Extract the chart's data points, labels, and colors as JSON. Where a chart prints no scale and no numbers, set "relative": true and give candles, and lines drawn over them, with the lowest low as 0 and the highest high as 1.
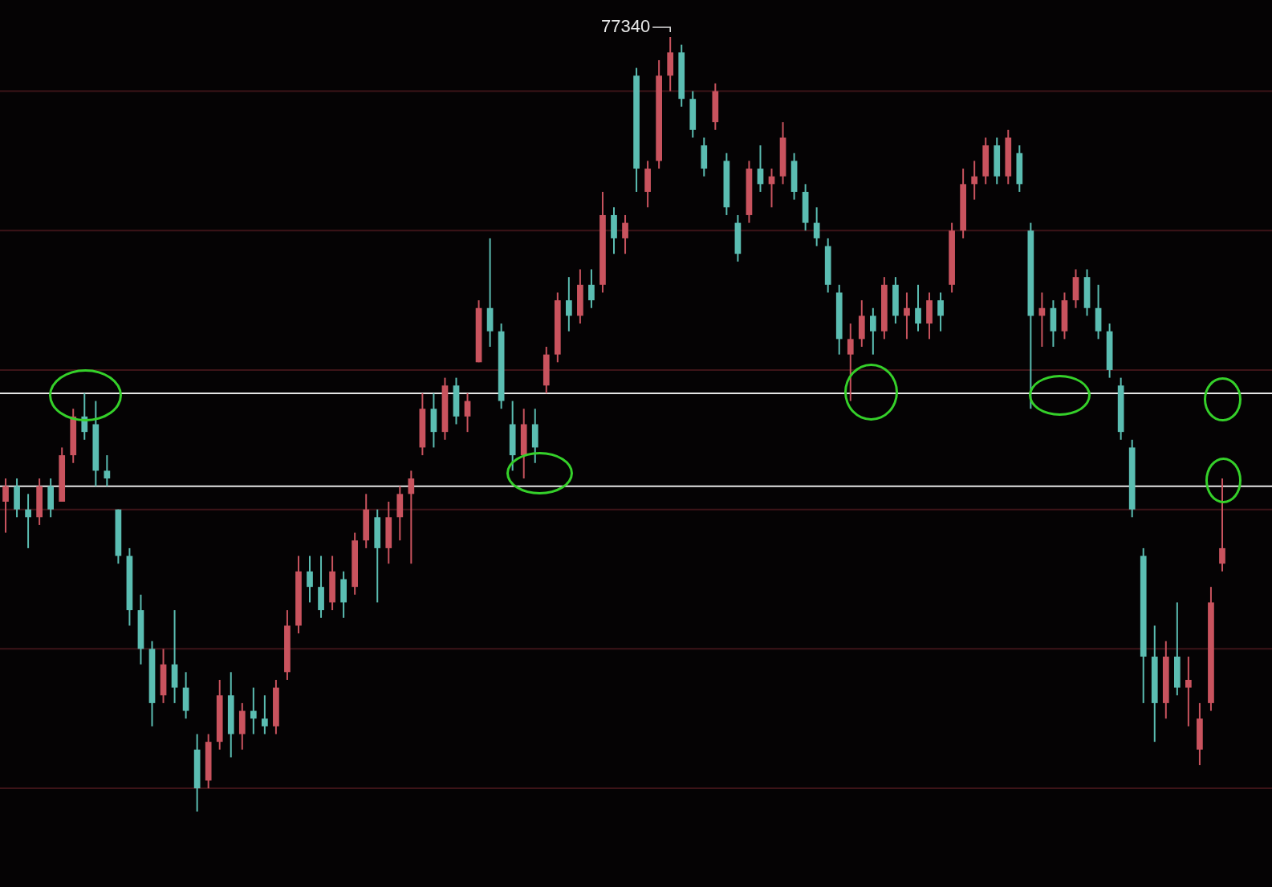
{
  "chart_data": {
    "type": "candlestick",
    "relative": true,
    "categories": [
      null,
      null,
      null,
      null,
      null,
      null,
      null,
      null,
      null,
      null,
      null,
      null,
      null,
      null,
      null,
      null,
      null,
      null,
      null,
      null,
      null,
      null,
      null,
      null,
      null,
      null,
      null,
      null,
      null,
      null,
      null,
      null,
      null,
      null,
      null,
      null,
      null,
      null,
      null,
      null,
      null,
      null,
      null,
      null,
      null,
      null,
      null,
      null,
      null,
      null,
      null,
      null,
      null,
      null,
      null,
      null,
      null,
      null,
      null,
      null,
      null,
      null,
      null,
      null,
      null,
      null,
      null,
      null,
      null,
      null,
      null,
      null,
      null,
      null,
      null,
      null,
      null,
      null,
      null,
      null,
      null,
      null,
      null,
      null,
      null,
      null,
      null,
      null,
      null,
      null,
      null,
      null,
      null,
      null,
      null,
      null,
      null,
      null,
      null,
      null,
      null,
      null,
      null,
      null,
      null,
      null,
      null,
      null,
      null
    ],
    "ohlc": [
      [
        0.4,
        0.43,
        0.36,
        0.42
      ],
      [
        0.42,
        0.43,
        0.38,
        0.39
      ],
      [
        0.39,
        0.41,
        0.34,
        0.38
      ],
      [
        0.38,
        0.43,
        0.37,
        0.42
      ],
      [
        0.42,
        0.43,
        0.38,
        0.39
      ],
      [
        0.4,
        0.47,
        0.4,
        0.46
      ],
      [
        0.46,
        0.52,
        0.45,
        0.51
      ],
      [
        0.51,
        0.54,
        0.48,
        0.49
      ],
      [
        0.5,
        0.53,
        0.42,
        0.44
      ],
      [
        0.44,
        0.46,
        0.42,
        0.43
      ],
      [
        0.39,
        0.39,
        0.32,
        0.33
      ],
      [
        0.33,
        0.34,
        0.24,
        0.26
      ],
      [
        0.26,
        0.28,
        0.19,
        0.21
      ],
      [
        0.21,
        0.22,
        0.11,
        0.14
      ],
      [
        0.15,
        0.21,
        0.14,
        0.19
      ],
      [
        0.19,
        0.26,
        0.14,
        0.16
      ],
      [
        0.16,
        0.18,
        0.12,
        0.13
      ],
      [
        0.08,
        0.1,
        0.0,
        0.03
      ],
      [
        0.04,
        0.1,
        0.03,
        0.09
      ],
      [
        0.09,
        0.17,
        0.08,
        0.15
      ],
      [
        0.15,
        0.18,
        0.07,
        0.1
      ],
      [
        0.1,
        0.14,
        0.08,
        0.13
      ],
      [
        0.13,
        0.16,
        0.1,
        0.12
      ],
      [
        0.12,
        0.15,
        0.1,
        0.11
      ],
      [
        0.11,
        0.17,
        0.1,
        0.16
      ],
      [
        0.18,
        0.26,
        0.17,
        0.24
      ],
      [
        0.24,
        0.33,
        0.23,
        0.31
      ],
      [
        0.31,
        0.33,
        0.27,
        0.29
      ],
      [
        0.29,
        0.33,
        0.25,
        0.26
      ],
      [
        0.27,
        0.33,
        0.26,
        0.31
      ],
      [
        0.3,
        0.31,
        0.25,
        0.27
      ],
      [
        0.29,
        0.36,
        0.28,
        0.35
      ],
      [
        0.35,
        0.41,
        0.34,
        0.39
      ],
      [
        0.38,
        0.39,
        0.27,
        0.34
      ],
      [
        0.34,
        0.4,
        0.32,
        0.38
      ],
      [
        0.38,
        0.42,
        0.35,
        0.41
      ],
      [
        0.41,
        0.44,
        0.32,
        0.43
      ],
      [
        0.47,
        0.54,
        0.46,
        0.52
      ],
      [
        0.52,
        0.54,
        0.47,
        0.49
      ],
      [
        0.49,
        0.56,
        0.48,
        0.55
      ],
      [
        0.55,
        0.56,
        0.5,
        0.51
      ],
      [
        0.51,
        0.54,
        0.49,
        0.53
      ],
      [
        0.58,
        0.66,
        0.58,
        0.65
      ],
      [
        0.65,
        0.74,
        0.6,
        0.62
      ],
      [
        0.62,
        0.63,
        0.52,
        0.53
      ],
      [
        0.5,
        0.53,
        0.44,
        0.46
      ],
      [
        0.46,
        0.52,
        0.43,
        0.5
      ],
      [
        0.5,
        0.52,
        0.45,
        0.47
      ],
      [
        0.55,
        0.6,
        0.54,
        0.59
      ],
      [
        0.59,
        0.67,
        0.58,
        0.66
      ],
      [
        0.66,
        0.69,
        0.62,
        0.64
      ],
      [
        0.64,
        0.7,
        0.63,
        0.68
      ],
      [
        0.68,
        0.7,
        0.65,
        0.66
      ],
      [
        0.68,
        0.8,
        0.67,
        0.77
      ],
      [
        0.77,
        0.78,
        0.72,
        0.74
      ],
      [
        0.74,
        0.77,
        0.72,
        0.76
      ],
      [
        0.95,
        0.96,
        0.8,
        0.83
      ],
      [
        0.8,
        0.84,
        0.78,
        0.83
      ],
      [
        0.84,
        0.97,
        0.83,
        0.95
      ],
      [
        0.95,
        1.0,
        0.93,
        0.98
      ],
      [
        0.98,
        0.99,
        0.91,
        0.92
      ],
      [
        0.92,
        0.93,
        0.87,
        0.88
      ],
      [
        0.86,
        0.87,
        0.82,
        0.83
      ],
      [
        0.89,
        0.94,
        0.88,
        0.93
      ],
      [
        0.84,
        0.85,
        0.77,
        0.78
      ],
      [
        0.76,
        0.77,
        0.71,
        0.72
      ],
      [
        0.77,
        0.84,
        0.76,
        0.83
      ],
      [
        0.83,
        0.86,
        0.8,
        0.81
      ],
      [
        0.81,
        0.83,
        0.78,
        0.82
      ],
      [
        0.82,
        0.89,
        0.81,
        0.87
      ],
      [
        0.84,
        0.85,
        0.79,
        0.8
      ],
      [
        0.8,
        0.81,
        0.75,
        0.76
      ],
      [
        0.76,
        0.78,
        0.73,
        0.74
      ],
      [
        0.73,
        0.74,
        0.67,
        0.68
      ],
      [
        0.67,
        0.68,
        0.59,
        0.61
      ],
      [
        0.59,
        0.63,
        0.53,
        0.61
      ],
      [
        0.61,
        0.66,
        0.6,
        0.64
      ],
      [
        0.64,
        0.65,
        0.59,
        0.62
      ],
      [
        0.62,
        0.69,
        0.61,
        0.68
      ],
      [
        0.68,
        0.69,
        0.63,
        0.64
      ],
      [
        0.64,
        0.67,
        0.61,
        0.65
      ],
      [
        0.65,
        0.68,
        0.62,
        0.63
      ],
      [
        0.63,
        0.67,
        0.61,
        0.66
      ],
      [
        0.66,
        0.67,
        0.62,
        0.64
      ],
      [
        0.68,
        0.76,
        0.67,
        0.75
      ],
      [
        0.75,
        0.83,
        0.74,
        0.81
      ],
      [
        0.81,
        0.84,
        0.79,
        0.82
      ],
      [
        0.82,
        0.87,
        0.81,
        0.86
      ],
      [
        0.86,
        0.87,
        0.81,
        0.82
      ],
      [
        0.82,
        0.88,
        0.81,
        0.87
      ],
      [
        0.85,
        0.86,
        0.8,
        0.81
      ],
      [
        0.75,
        0.76,
        0.52,
        0.64
      ],
      [
        0.64,
        0.67,
        0.6,
        0.65
      ],
      [
        0.65,
        0.66,
        0.6,
        0.62
      ],
      [
        0.62,
        0.67,
        0.61,
        0.66
      ],
      [
        0.66,
        0.7,
        0.65,
        0.69
      ],
      [
        0.69,
        0.7,
        0.64,
        0.65
      ],
      [
        0.65,
        0.68,
        0.61,
        0.62
      ],
      [
        0.62,
        0.63,
        0.56,
        0.57
      ],
      [
        0.55,
        0.56,
        0.48,
        0.49
      ],
      [
        0.47,
        0.48,
        0.38,
        0.39
      ],
      [
        0.33,
        0.34,
        0.14,
        0.2
      ],
      [
        0.2,
        0.24,
        0.09,
        0.14
      ],
      [
        0.14,
        0.22,
        0.12,
        0.2
      ],
      [
        0.2,
        0.27,
        0.15,
        0.16
      ],
      [
        0.16,
        0.2,
        0.11,
        0.17
      ],
      [
        0.08,
        0.14,
        0.06,
        0.12
      ],
      [
        0.14,
        0.29,
        0.13,
        0.27
      ],
      [
        0.32,
        0.43,
        0.31,
        0.34
      ]
    ],
    "colors": [
      "#c9535e",
      "#5bbdb2",
      "#5bbdb2",
      "#c9535e",
      "#5bbdb2",
      "#c9535e",
      "#c9535e",
      "#5bbdb2",
      "#5bbdb2",
      "#5bbdb2",
      "#5bbdb2",
      "#5bbdb2",
      "#5bbdb2",
      "#5bbdb2",
      "#c9535e",
      "#5bbdb2",
      "#5bbdb2",
      "#5bbdb2",
      "#c9535e",
      "#c9535e",
      "#5bbdb2",
      "#c9535e",
      "#5bbdb2",
      "#5bbdb2",
      "#c9535e",
      "#c9535e",
      "#c9535e",
      "#5bbdb2",
      "#5bbdb2",
      "#c9535e",
      "#5bbdb2",
      "#c9535e",
      "#c9535e",
      "#5bbdb2",
      "#c9535e",
      "#c9535e",
      "#c9535e",
      "#c9535e",
      "#5bbdb2",
      "#c9535e",
      "#5bbdb2",
      "#c9535e",
      "#c9535e",
      "#5bbdb2",
      "#5bbdb2",
      "#5bbdb2",
      "#c9535e",
      "#5bbdb2",
      "#c9535e",
      "#c9535e",
      "#5bbdb2",
      "#c9535e",
      "#5bbdb2",
      "#c9535e",
      "#5bbdb2",
      "#c9535e",
      "#5bbdb2",
      "#c9535e",
      "#c9535e",
      "#c9535e",
      "#5bbdb2",
      "#5bbdb2",
      "#5bbdb2",
      "#c9535e",
      "#5bbdb2",
      "#5bbdb2",
      "#c9535e",
      "#5bbdb2",
      "#c9535e",
      "#c9535e",
      "#5bbdb2",
      "#5bbdb2",
      "#5bbdb2",
      "#5bbdb2",
      "#5bbdb2",
      "#c9535e",
      "#c9535e",
      "#5bbdb2",
      "#c9535e",
      "#5bbdb2",
      "#c9535e",
      "#5bbdb2",
      "#c9535e",
      "#5bbdb2",
      "#c9535e",
      "#c9535e",
      "#c9535e",
      "#c9535e",
      "#5bbdb2",
      "#c9535e",
      "#5bbdb2",
      "#5bbdb2",
      "#c9535e",
      "#5bbdb2",
      "#c9535e",
      "#c9535e",
      "#5bbdb2",
      "#5bbdb2",
      "#5bbdb2",
      "#5bbdb2",
      "#5bbdb2",
      "#5bbdb2",
      "#5bbdb2",
      "#c9535e",
      "#5bbdb2",
      "#c9535e",
      "#c9535e",
      "#c9535e",
      "#c9535e"
    ],
    "ref_lines": [
      {
        "axis": "y",
        "value": 0.93,
        "color": "#3d1418"
      },
      {
        "axis": "y",
        "value": 0.75,
        "color": "#3d1418"
      },
      {
        "axis": "y",
        "value": 0.57,
        "color": "#3d1418"
      },
      {
        "axis": "y",
        "value": 0.39,
        "color": "#3d1418"
      },
      {
        "axis": "y",
        "value": 0.21,
        "color": "#3d1418"
      },
      {
        "axis": "y",
        "value": 0.03,
        "color": "#3d1418"
      },
      {
        "axis": "y",
        "value": 0.54,
        "color": "#e6e6e6"
      },
      {
        "axis": "y",
        "value": 0.42,
        "color": "#e6e6e6"
      }
    ],
    "annotations": [
      "77340"
    ]
  }
}
